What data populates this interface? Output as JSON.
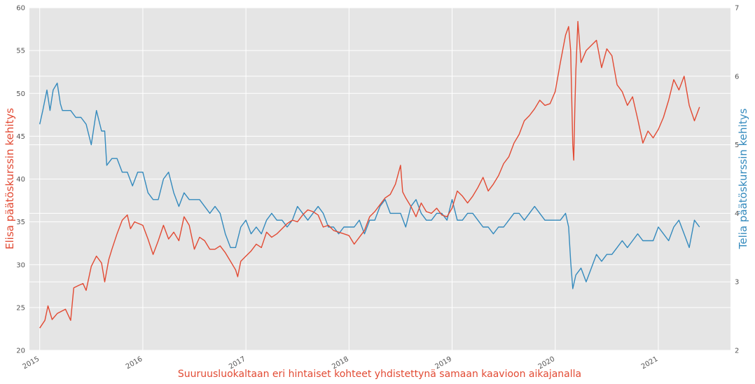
{
  "chart_data": {
    "type": "line",
    "title": "",
    "xlabel": "Suuruusluokaltaan eri hintaiset kohteet yhdistettynä samaan kaavioon aikajanalla",
    "ylabel_left": "Elisa päätöskurssin kehitys",
    "ylabel_right": "Telia päätöskurssin kehitys",
    "xlim": [
      2014.9,
      2021.7
    ],
    "ylim_left": [
      20,
      60
    ],
    "ylim_right": [
      2,
      7
    ],
    "x_ticks": [
      2015,
      2016,
      2017,
      2018,
      2019,
      2020,
      2021
    ],
    "x_tick_labels": [
      "2015",
      "2016",
      "2017",
      "2018",
      "2019",
      "2020",
      "2021"
    ],
    "y_ticks_left": [
      20,
      25,
      30,
      35,
      40,
      45,
      50,
      55,
      60
    ],
    "y_tick_labels_left": [
      "20",
      "25",
      "30",
      "35",
      "40",
      "45",
      "50",
      "55",
      "60"
    ],
    "y_ticks_right": [
      2,
      3,
      4,
      5,
      6,
      7
    ],
    "y_tick_labels_right": [
      "2",
      "3",
      "4",
      "5",
      "6",
      "7"
    ],
    "grid": true,
    "colors": {
      "elisa": "#E24A33",
      "telia": "#348ABD",
      "background": "#E5E5E5",
      "grid": "#FFFFFF"
    },
    "series": [
      {
        "axis": "left",
        "x": [
          2015.0,
          2015.05,
          2015.08,
          2015.12,
          2015.17,
          2015.25,
          2015.3,
          2015.33,
          2015.38,
          2015.42,
          2015.45,
          2015.5,
          2015.55,
          2015.6,
          2015.63,
          2015.67,
          2015.7,
          2015.75,
          2015.8,
          2015.85,
          2015.88,
          2015.92,
          2016.0,
          2016.05,
          2016.1,
          2016.15,
          2016.2,
          2016.25,
          2016.3,
          2016.35,
          2016.4,
          2016.45,
          2016.5,
          2016.55,
          2016.6,
          2016.65,
          2016.7,
          2016.75,
          2016.8,
          2016.85,
          2016.9,
          2016.92,
          2016.95,
          2017.0,
          2017.05,
          2017.1,
          2017.15,
          2017.2,
          2017.25,
          2017.3,
          2017.35,
          2017.4,
          2017.45,
          2017.5,
          2017.55,
          2017.6,
          2017.65,
          2017.7,
          2017.75,
          2017.8,
          2017.85,
          2017.9,
          2017.95,
          2018.0,
          2018.05,
          2018.1,
          2018.15,
          2018.2,
          2018.25,
          2018.3,
          2018.35,
          2018.4,
          2018.45,
          2018.5,
          2018.52,
          2018.55,
          2018.6,
          2018.65,
          2018.7,
          2018.75,
          2018.8,
          2018.85,
          2018.9,
          2018.95,
          2019.0,
          2019.05,
          2019.1,
          2019.15,
          2019.2,
          2019.25,
          2019.3,
          2019.35,
          2019.4,
          2019.45,
          2019.5,
          2019.55,
          2019.6,
          2019.65,
          2019.7,
          2019.75,
          2019.8,
          2019.85,
          2019.9,
          2019.95,
          2020.0,
          2020.05,
          2020.1,
          2020.13,
          2020.15,
          2020.17,
          2020.18,
          2020.19,
          2020.2,
          2020.22,
          2020.25,
          2020.3,
          2020.35,
          2020.4,
          2020.45,
          2020.5,
          2020.55,
          2020.6,
          2020.65,
          2020.7,
          2020.75,
          2020.8,
          2020.85,
          2020.9,
          2020.95,
          2021.0,
          2021.05,
          2021.1,
          2021.15,
          2021.2,
          2021.25,
          2021.3,
          2021.35,
          2021.4
        ],
        "values": [
          22.6,
          23.5,
          25.2,
          23.6,
          24.3,
          24.8,
          23.5,
          27.3,
          27.6,
          27.8,
          27.0,
          29.8,
          31.0,
          30.2,
          28.0,
          30.6,
          31.8,
          33.6,
          35.2,
          35.8,
          34.2,
          35.0,
          34.6,
          33.0,
          31.2,
          32.8,
          34.6,
          33.0,
          33.8,
          32.8,
          35.6,
          34.6,
          31.8,
          33.2,
          32.8,
          31.8,
          31.8,
          32.2,
          31.4,
          30.4,
          29.4,
          28.6,
          30.4,
          31.0,
          31.6,
          32.4,
          32.0,
          33.8,
          33.2,
          33.6,
          34.2,
          34.8,
          35.2,
          35.0,
          35.8,
          36.4,
          36.2,
          35.8,
          34.4,
          34.6,
          34.0,
          33.8,
          33.6,
          33.4,
          32.4,
          33.2,
          34.0,
          35.6,
          36.2,
          37.0,
          37.8,
          38.2,
          39.4,
          41.6,
          38.5,
          37.8,
          36.8,
          35.6,
          37.2,
          36.2,
          36.0,
          36.6,
          35.8,
          35.6,
          36.6,
          38.6,
          38.0,
          37.2,
          38.0,
          39.0,
          40.2,
          38.6,
          39.4,
          40.4,
          41.8,
          42.6,
          44.2,
          45.2,
          46.8,
          47.4,
          48.2,
          49.2,
          48.6,
          48.8,
          50.2,
          53.6,
          56.8,
          57.8,
          55.0,
          44.0,
          42.2,
          48.0,
          52.6,
          58.4,
          53.6,
          55.0,
          55.6,
          56.2,
          53.0,
          55.2,
          54.4,
          51.0,
          50.2,
          48.6,
          49.6,
          47.0,
          44.2,
          45.6,
          44.8,
          45.8,
          47.2,
          49.2,
          51.6,
          50.4,
          52.0,
          48.6,
          46.8,
          48.4
        ]
      },
      {
        "axis": "right",
        "x": [
          2015.0,
          2015.03,
          2015.07,
          2015.1,
          2015.13,
          2015.17,
          2015.2,
          2015.22,
          2015.25,
          2015.3,
          2015.35,
          2015.4,
          2015.45,
          2015.5,
          2015.55,
          2015.6,
          2015.63,
          2015.65,
          2015.7,
          2015.75,
          2015.8,
          2015.85,
          2015.9,
          2015.95,
          2016.0,
          2016.05,
          2016.1,
          2016.15,
          2016.2,
          2016.25,
          2016.3,
          2016.35,
          2016.4,
          2016.45,
          2016.5,
          2016.55,
          2016.6,
          2016.65,
          2016.7,
          2016.75,
          2016.8,
          2016.85,
          2016.9,
          2016.95,
          2017.0,
          2017.05,
          2017.1,
          2017.15,
          2017.2,
          2017.25,
          2017.3,
          2017.35,
          2017.4,
          2017.45,
          2017.5,
          2017.55,
          2017.6,
          2017.65,
          2017.7,
          2017.75,
          2017.8,
          2017.85,
          2017.9,
          2017.95,
          2018.0,
          2018.05,
          2018.1,
          2018.15,
          2018.2,
          2018.25,
          2018.3,
          2018.35,
          2018.4,
          2018.45,
          2018.5,
          2018.55,
          2018.6,
          2018.65,
          2018.7,
          2018.75,
          2018.8,
          2018.85,
          2018.9,
          2018.95,
          2019.0,
          2019.05,
          2019.1,
          2019.15,
          2019.2,
          2019.25,
          2019.3,
          2019.35,
          2019.4,
          2019.45,
          2019.5,
          2019.55,
          2019.6,
          2019.65,
          2019.7,
          2019.75,
          2019.8,
          2019.85,
          2019.9,
          2019.95,
          2020.0,
          2020.05,
          2020.1,
          2020.13,
          2020.15,
          2020.17,
          2020.2,
          2020.25,
          2020.3,
          2020.35,
          2020.4,
          2020.45,
          2020.5,
          2020.55,
          2020.6,
          2020.65,
          2020.7,
          2020.75,
          2020.8,
          2020.85,
          2020.9,
          2020.95,
          2021.0,
          2021.05,
          2021.1,
          2021.15,
          2021.2,
          2021.25,
          2021.3,
          2021.35,
          2021.4
        ],
        "values": [
          5.3,
          5.5,
          5.8,
          5.5,
          5.8,
          5.9,
          5.6,
          5.5,
          5.5,
          5.5,
          5.4,
          5.4,
          5.3,
          5.0,
          5.5,
          5.2,
          5.2,
          4.7,
          4.8,
          4.8,
          4.6,
          4.6,
          4.4,
          4.6,
          4.6,
          4.3,
          4.2,
          4.2,
          4.5,
          4.6,
          4.3,
          4.1,
          4.3,
          4.2,
          4.2,
          4.2,
          4.1,
          4.0,
          4.1,
          4.0,
          3.7,
          3.5,
          3.5,
          3.8,
          3.9,
          3.7,
          3.8,
          3.7,
          3.9,
          4.0,
          3.9,
          3.9,
          3.8,
          3.9,
          4.1,
          4.0,
          3.9,
          4.0,
          4.1,
          4.0,
          3.8,
          3.8,
          3.7,
          3.8,
          3.8,
          3.8,
          3.9,
          3.7,
          3.9,
          3.9,
          4.1,
          4.2,
          4.0,
          4.0,
          4.0,
          3.8,
          4.1,
          4.2,
          4.0,
          3.9,
          3.9,
          4.0,
          4.0,
          3.9,
          4.2,
          3.9,
          3.9,
          4.0,
          4.0,
          3.9,
          3.8,
          3.8,
          3.7,
          3.8,
          3.8,
          3.9,
          4.0,
          4.0,
          3.9,
          4.0,
          4.1,
          4.0,
          3.9,
          3.9,
          3.9,
          3.9,
          4.0,
          3.8,
          3.3,
          2.9,
          3.1,
          3.2,
          3.0,
          3.2,
          3.4,
          3.3,
          3.4,
          3.4,
          3.5,
          3.6,
          3.5,
          3.6,
          3.7,
          3.6,
          3.6,
          3.6,
          3.8,
          3.7,
          3.6,
          3.8,
          3.9,
          3.7,
          3.5,
          3.9,
          3.8
        ]
      }
    ]
  }
}
